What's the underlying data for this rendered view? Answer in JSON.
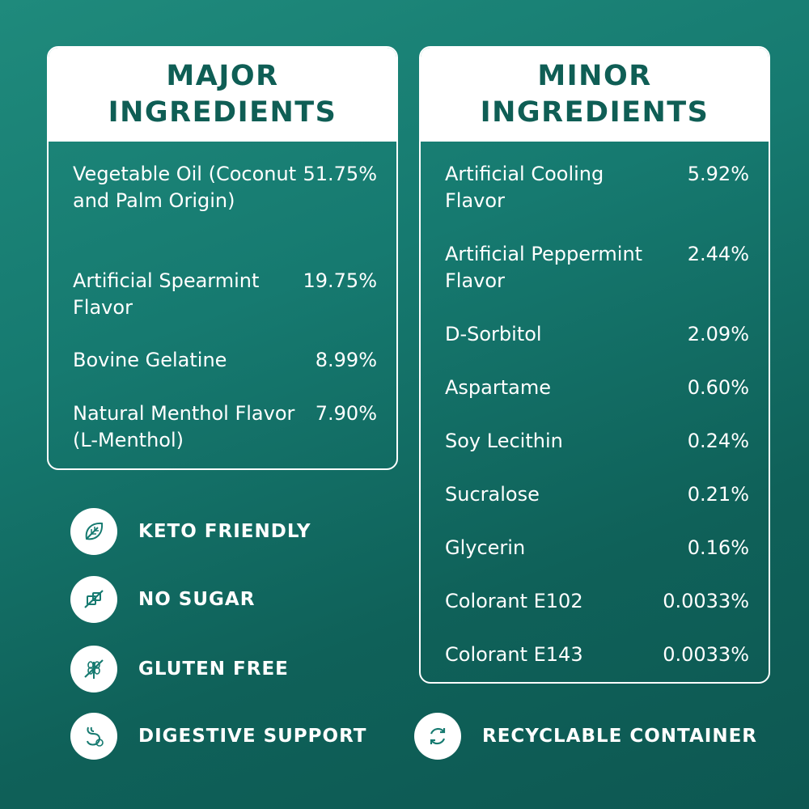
{
  "major": {
    "title_line1": "MAJOR",
    "title_line2": "INGREDIENTS",
    "items": [
      {
        "name": "Vegetable Oil (Coconut and Palm Origin)",
        "pct": "51.75%"
      },
      {
        "name": "Artificial Spearmint Flavor",
        "pct": "19.75%"
      },
      {
        "name": "Bovine Gelatine",
        "pct": "8.99%"
      },
      {
        "name": "Natural Menthol Flavor (L-Menthol)",
        "pct": "7.90%"
      }
    ]
  },
  "minor": {
    "title_line1": "MINOR",
    "title_line2": "INGREDIENTS",
    "items": [
      {
        "name": "Artificial Cooling Flavor",
        "pct": "5.92%"
      },
      {
        "name": "Artificial Peppermint Flavor",
        "pct": "2.44%"
      },
      {
        "name": "D-Sorbitol",
        "pct": "2.09%"
      },
      {
        "name": "Aspartame",
        "pct": "0.60%"
      },
      {
        "name": "Soy Lecithin",
        "pct": "0.24%"
      },
      {
        "name": "Sucralose",
        "pct": "0.21%"
      },
      {
        "name": "Glycerin",
        "pct": "0.16%"
      },
      {
        "name": "Colorant E102",
        "pct": "0.0033%"
      },
      {
        "name": "Colorant E143",
        "pct": "0.0033%"
      }
    ]
  },
  "badges": [
    {
      "label": "KETO FRIENDLY",
      "icon": "leaf-icon"
    },
    {
      "label": "NO SUGAR",
      "icon": "no-sugar-icon"
    },
    {
      "label": "GLUTEN FREE",
      "icon": "gluten-free-icon"
    },
    {
      "label": "DIGESTIVE SUPPORT",
      "icon": "digestive-icon"
    },
    {
      "label": "RECYCLABLE CONTAINER",
      "icon": "recycle-icon"
    }
  ],
  "colors": {
    "background": "#167a70",
    "title_text": "#0f5e55",
    "panel_border": "#ffffff"
  }
}
